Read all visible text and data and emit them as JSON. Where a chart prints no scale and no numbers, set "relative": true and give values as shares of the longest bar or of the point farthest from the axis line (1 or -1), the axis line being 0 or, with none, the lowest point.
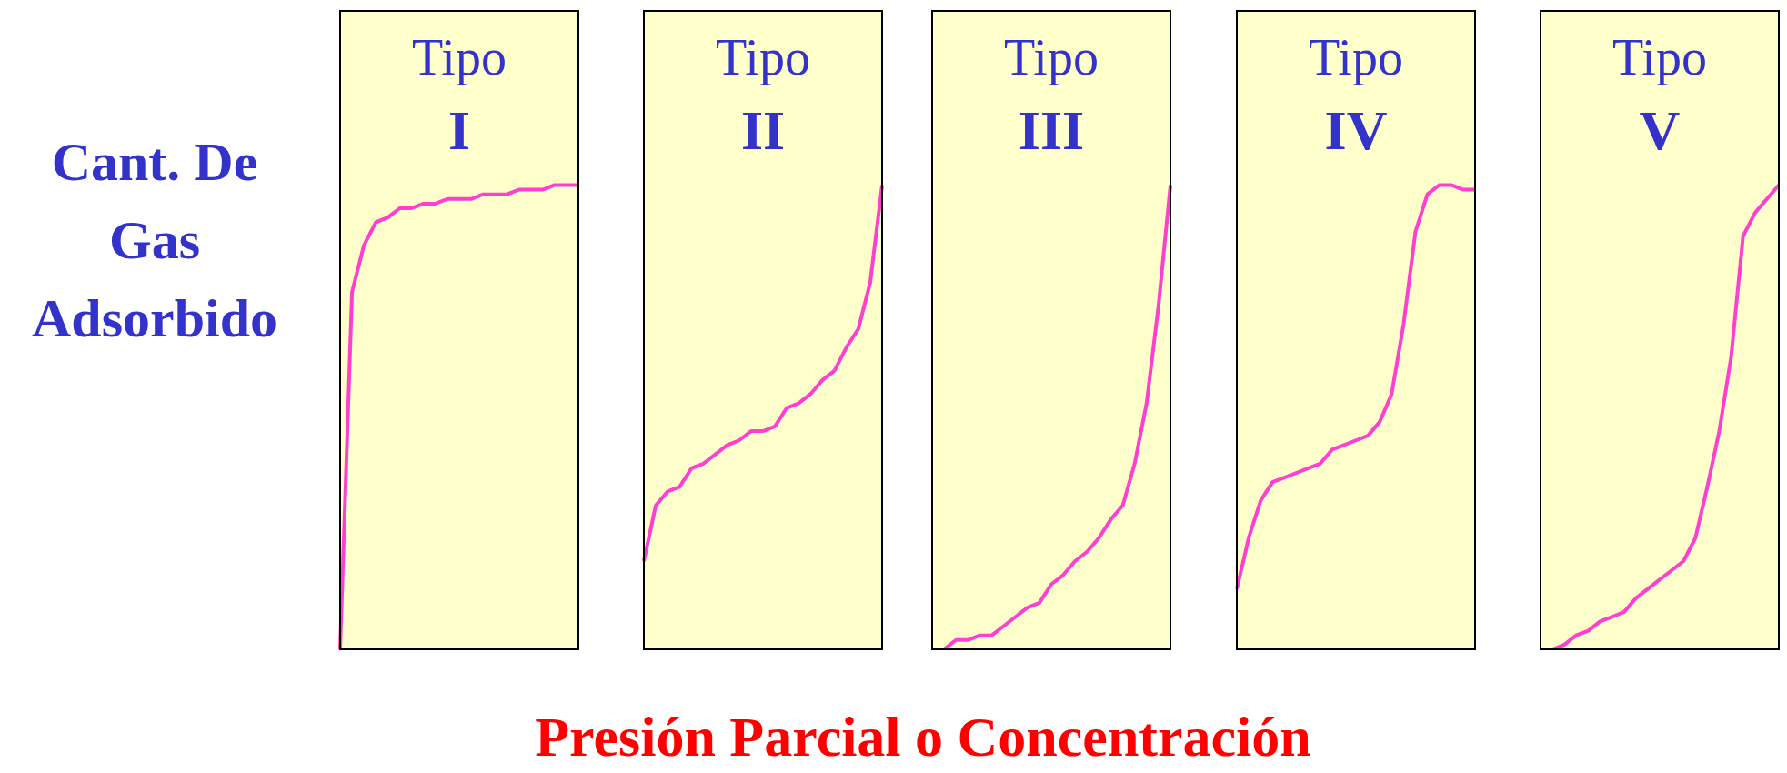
{
  "chart_data": [
    {
      "type": "line",
      "title": "Tipo",
      "subtitle": "I",
      "ylabel": "Cant. De Gas Adsorbido",
      "relative": true,
      "marker": "none",
      "categories": [
        null,
        null,
        null,
        null,
        null,
        null,
        null,
        null,
        null,
        null,
        null,
        null,
        null,
        null,
        null,
        null,
        null,
        null,
        null,
        null,
        null
      ],
      "series": [
        {
          "color": "#ff3fcf",
          "values": [
            0,
            0.77,
            0.87,
            0.92,
            0.93,
            0.95,
            0.95,
            0.96,
            0.96,
            0.97,
            0.97,
            0.97,
            0.98,
            0.98,
            0.98,
            0.99,
            0.99,
            0.99,
            1,
            1,
            1
          ]
        }
      ]
    },
    {
      "type": "line",
      "title": "Tipo",
      "subtitle": "II",
      "relative": true,
      "marker": "none",
      "categories": [
        null,
        null,
        null,
        null,
        null,
        null,
        null,
        null,
        null,
        null,
        null,
        null,
        null,
        null,
        null,
        null,
        null,
        null,
        null,
        null,
        null
      ],
      "series": [
        {
          "color": "#ff3fcf",
          "values": [
            0.19,
            0.31,
            0.34,
            0.35,
            0.39,
            0.4,
            0.42,
            0.44,
            0.45,
            0.47,
            0.47,
            0.48,
            0.52,
            0.53,
            0.55,
            0.58,
            0.6,
            0.65,
            0.69,
            0.79,
            1
          ]
        }
      ]
    },
    {
      "type": "line",
      "title": "Tipo",
      "subtitle": "III",
      "xlabel": "Presión Parcial o Concentración",
      "relative": true,
      "marker": "none",
      "categories": [
        null,
        null,
        null,
        null,
        null,
        null,
        null,
        null,
        null,
        null,
        null,
        null,
        null,
        null,
        null,
        null,
        null,
        null,
        null,
        null,
        null
      ],
      "series": [
        {
          "color": "#ff3fcf",
          "values": [
            0,
            0,
            0.02,
            0.02,
            0.03,
            0.03,
            0.05,
            0.07,
            0.09,
            0.1,
            0.14,
            0.16,
            0.19,
            0.21,
            0.24,
            0.28,
            0.31,
            0.4,
            0.53,
            0.74,
            1
          ]
        }
      ]
    },
    {
      "type": "line",
      "title": "Tipo",
      "subtitle": "IV",
      "relative": true,
      "marker": "none",
      "categories": [
        null,
        null,
        null,
        null,
        null,
        null,
        null,
        null,
        null,
        null,
        null,
        null,
        null,
        null,
        null,
        null,
        null,
        null,
        null,
        null,
        null
      ],
      "series": [
        {
          "color": "#ff3fcf",
          "values": [
            0.13,
            0.24,
            0.32,
            0.36,
            0.37,
            0.38,
            0.39,
            0.4,
            0.43,
            0.44,
            0.45,
            0.46,
            0.49,
            0.55,
            0.7,
            0.9,
            0.98,
            1,
            1,
            0.99,
            0.99
          ]
        }
      ]
    },
    {
      "type": "line",
      "title": "Tipo",
      "subtitle": "V",
      "relative": true,
      "marker": "none",
      "categories": [
        null,
        null,
        null,
        null,
        null,
        null,
        null,
        null,
        null,
        null,
        null,
        null,
        null,
        null,
        null,
        null,
        null,
        null,
        null,
        null,
        null
      ],
      "series": [
        {
          "color": "#ff3fcf",
          "values": [
            null,
            0,
            0.01,
            0.03,
            0.04,
            0.06,
            0.07,
            0.08,
            0.11,
            0.13,
            0.15,
            0.17,
            0.19,
            0.24,
            0.35,
            0.47,
            0.63,
            0.89,
            0.94,
            0.97,
            1
          ]
        }
      ]
    }
  ]
}
